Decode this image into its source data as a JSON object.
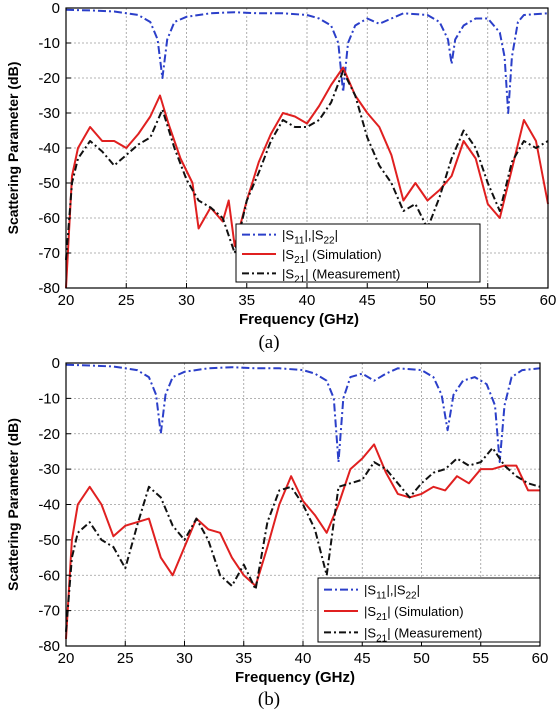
{
  "chart_data": [
    {
      "type": "line",
      "caption": "(a)",
      "xlabel": "Frequency (GHz)",
      "ylabel": "Scattering Parameter (dB)",
      "xlim": [
        20,
        60
      ],
      "ylim": [
        -80,
        0
      ],
      "xticks": [
        20,
        25,
        30,
        35,
        40,
        45,
        50,
        55,
        60
      ],
      "yticks": [
        0,
        -10,
        -20,
        -30,
        -40,
        -50,
        -60,
        -70,
        -80
      ],
      "grid": true,
      "legend_position": "bottom-right",
      "series": [
        {
          "name": "|S11|,|S22|",
          "label": {
            "base": "|S",
            "sub1": "11",
            "mid": "|,|S",
            "sub2": "22",
            "tail": "|"
          },
          "color": "#2b3fc9",
          "dash": "8,3,2,3",
          "x": [
            20,
            22,
            24,
            26,
            27,
            27.6,
            28,
            28.4,
            29,
            30,
            32,
            34,
            36,
            38,
            40,
            41,
            42,
            42.6,
            43,
            43.4,
            44,
            45,
            46,
            47,
            48,
            50,
            51,
            51.7,
            52,
            52.3,
            53,
            54,
            55,
            56,
            56.4,
            56.7,
            57,
            57.5,
            58,
            60
          ],
          "y": [
            -0.5,
            -0.7,
            -1,
            -2,
            -4,
            -9,
            -20,
            -9,
            -4,
            -2.5,
            -1.5,
            -1.2,
            -1.5,
            -1.5,
            -2,
            -3,
            -5,
            -10,
            -24,
            -10,
            -5,
            -3,
            -4.5,
            -3,
            -1.5,
            -2,
            -4,
            -9,
            -16,
            -9,
            -5,
            -3,
            -3,
            -7,
            -14,
            -30,
            -14,
            -4,
            -2,
            -1.5
          ]
        },
        {
          "name": "|S21| (Simulation)",
          "label": {
            "base": "|S",
            "sub1": "21",
            "tail": "| (Simulation)"
          },
          "color": "#e02020",
          "dash": "",
          "x": [
            20,
            20.5,
            21,
            22,
            23,
            24,
            25,
            26,
            27,
            27.8,
            28.5,
            29.5,
            30.5,
            31,
            32,
            33,
            33.5,
            34,
            35,
            36,
            37,
            38,
            39,
            40,
            41,
            42,
            43,
            44,
            45,
            46,
            47,
            48,
            49,
            50,
            51,
            52,
            53,
            54,
            55,
            56,
            57,
            58,
            59,
            60
          ],
          "y": [
            -80,
            -48,
            -40,
            -34,
            -38,
            -38,
            -40,
            -36,
            -31,
            -25,
            -33,
            -43,
            -50,
            -63,
            -57,
            -61,
            -55,
            -68,
            -55,
            -44,
            -36,
            -30,
            -31,
            -33,
            -28,
            -22,
            -17,
            -25,
            -30,
            -34,
            -42,
            -55,
            -50,
            -55,
            -52,
            -48,
            -38,
            -43,
            -56,
            -60,
            -46,
            -32,
            -38,
            -56
          ]
        },
        {
          "name": "|S21| (Measurement)",
          "label": {
            "base": "|S",
            "sub1": "21",
            "tail": "| (Measurement)"
          },
          "color": "#111111",
          "dash": "7,3,2,3",
          "x": [
            20,
            20.5,
            21,
            22,
            23,
            24,
            25,
            26,
            27,
            28,
            29,
            30,
            31,
            32,
            33,
            34,
            35,
            36,
            37,
            38,
            39,
            40,
            41,
            42,
            43,
            44,
            45,
            46,
            47,
            48,
            49,
            50,
            51,
            52,
            53,
            54,
            55,
            56,
            57,
            58,
            59,
            60
          ],
          "y": [
            -72,
            -50,
            -43,
            -38,
            -41,
            -45,
            -42,
            -39,
            -37,
            -29,
            -40,
            -49,
            -55,
            -57,
            -60,
            -70,
            -55,
            -47,
            -38,
            -32,
            -34,
            -34,
            -32,
            -27,
            -18,
            -25,
            -37,
            -45,
            -50,
            -58,
            -56,
            -63,
            -54,
            -43,
            -35,
            -40,
            -50,
            -58,
            -44,
            -38,
            -40,
            -38
          ]
        }
      ]
    },
    {
      "type": "line",
      "caption": "(b)",
      "xlabel": "Frequency (GHz)",
      "ylabel": "Scattering Parameter (dB)",
      "xlim": [
        20,
        60
      ],
      "ylim": [
        -80,
        0
      ],
      "xticks": [
        20,
        25,
        30,
        35,
        40,
        45,
        50,
        55,
        60
      ],
      "yticks": [
        0,
        -10,
        -20,
        -30,
        -40,
        -50,
        -60,
        -70,
        -80
      ],
      "grid": true,
      "legend_position": "bottom-right",
      "series": [
        {
          "name": "|S11|,|S22|",
          "label": {
            "base": "|S",
            "sub1": "11",
            "mid": "|,|S",
            "sub2": "22",
            "tail": "|"
          },
          "color": "#2b3fc9",
          "dash": "8,3,2,3",
          "x": [
            20,
            22,
            24,
            26,
            27,
            27.6,
            28,
            28.4,
            29,
            30,
            32,
            34,
            36,
            38,
            40,
            41,
            42,
            42.6,
            43,
            43.4,
            44,
            45,
            46,
            47,
            48,
            50,
            51,
            51.7,
            52.2,
            52.7,
            53.5,
            54.5,
            55.5,
            56.2,
            56.6,
            57,
            57.6,
            58.5,
            60
          ],
          "y": [
            -0.5,
            -0.7,
            -1,
            -2,
            -4,
            -9,
            -20,
            -9,
            -4,
            -2.5,
            -1.5,
            -1.2,
            -1.5,
            -1.5,
            -2,
            -3,
            -5,
            -10,
            -28,
            -10,
            -4,
            -3,
            -5,
            -3,
            -1.5,
            -2,
            -4,
            -9,
            -19,
            -9,
            -5,
            -4,
            -6,
            -12,
            -28,
            -12,
            -4,
            -2,
            -1.5
          ]
        },
        {
          "name": "|S21| (Simulation)",
          "label": {
            "base": "|S",
            "sub1": "21",
            "tail": "| (Simulation)"
          },
          "color": "#e02020",
          "dash": "",
          "x": [
            20,
            20.5,
            21,
            22,
            23,
            24,
            25,
            26,
            27,
            28,
            29,
            30,
            31,
            32,
            33,
            34,
            35,
            36,
            37,
            38,
            39,
            40,
            41,
            42,
            43,
            44,
            45,
            46,
            47,
            48,
            49,
            50,
            51,
            52,
            53,
            54,
            55,
            56,
            57,
            58,
            59,
            60
          ],
          "y": [
            -78,
            -50,
            -40,
            -35,
            -40,
            -49,
            -46,
            -45,
            -44,
            -55,
            -60,
            -52,
            -44,
            -47,
            -48,
            -55,
            -60,
            -63,
            -52,
            -40,
            -32,
            -39,
            -43,
            -48,
            -40,
            -30,
            -27,
            -23,
            -31,
            -37,
            -38,
            -37,
            -35,
            -36,
            -32,
            -34,
            -30,
            -30,
            -29,
            -29,
            -36,
            -36
          ]
        },
        {
          "name": "|S21| (Measurement)",
          "label": {
            "base": "|S",
            "sub1": "21",
            "tail": "| (Measurement)"
          },
          "color": "#111111",
          "dash": "7,3,2,3",
          "x": [
            20,
            20.5,
            21,
            22,
            23,
            24,
            25,
            26,
            27,
            28,
            29,
            30,
            31,
            32,
            33,
            34,
            35,
            36,
            37,
            38,
            39,
            40,
            41,
            42,
            43,
            44,
            45,
            46,
            47,
            48,
            49,
            50,
            51,
            52,
            53,
            54,
            55,
            56,
            57,
            58,
            59,
            60
          ],
          "y": [
            -76,
            -55,
            -48,
            -45,
            -50,
            -52,
            -58,
            -46,
            -35,
            -38,
            -46,
            -50,
            -44,
            -50,
            -60,
            -63,
            -57,
            -64,
            -45,
            -36,
            -35,
            -40,
            -47,
            -60,
            -35,
            -34,
            -33,
            -28,
            -30,
            -34,
            -38,
            -34,
            -31,
            -30,
            -27,
            -29,
            -28,
            -24,
            -29,
            -32,
            -34,
            -35
          ]
        }
      ]
    }
  ]
}
